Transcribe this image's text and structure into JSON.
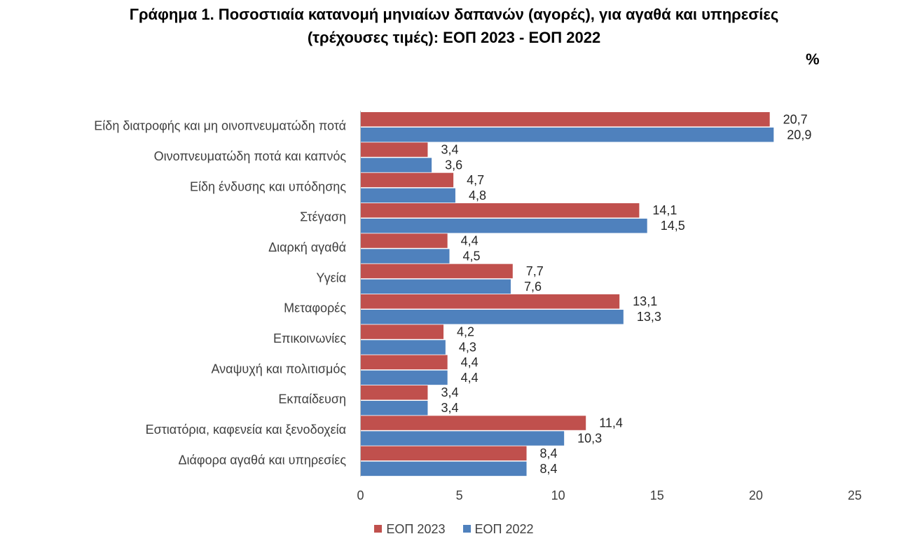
{
  "title_lines": [
    "Γράφημα 1. Ποσοστιαία κατανομή μηνιαίων δαπανών (αγορές), για αγαθά και υπηρεσίες",
    "(τρέχουσες τιμές): ΕΟΠ 2023 - ΕΟΠ 2022"
  ],
  "unit_label": "%",
  "chart_data": {
    "type": "bar",
    "orientation": "horizontal",
    "title": "Γράφημα 1. Ποσοστιαία κατανομή μηνιαίων δαπανών (αγορές), για αγαθά και υπηρεσίες (τρέχουσες τιμές): ΕΟΠ 2023 - ΕΟΠ 2022",
    "unit": "%",
    "categories": [
      "Είδη διατροφής και μη οινοπνευματώδη ποτά",
      "Οινοπνευματώδη ποτά και καπνός",
      "Είδη ένδυσης και υπόδησης",
      "Στέγαση",
      "Διαρκή αγαθά",
      "Υγεία",
      "Μεταφορές",
      "Επικοινωνίες",
      "Αναψυχή και πολιτισμός",
      "Εκπαίδευση",
      "Εστιατόρια, καφενεία  και ξενοδοχεία",
      "Διάφορα αγαθά και υπηρεσίες"
    ],
    "series": [
      {
        "name": "ΕΟΠ 2023",
        "color": "#C0504D",
        "values": [
          20.7,
          3.4,
          4.7,
          14.1,
          4.4,
          7.7,
          13.1,
          4.2,
          4.4,
          3.4,
          11.4,
          8.4
        ],
        "labels": [
          "20,7",
          "3,4",
          "4,7",
          "14,1",
          "4,4",
          "7,7",
          "13,1",
          "4,2",
          "4,4",
          "3,4",
          "11,4",
          "8,4"
        ]
      },
      {
        "name": "ΕΟΠ 2022",
        "color": "#4F81BD",
        "values": [
          20.9,
          3.6,
          4.8,
          14.5,
          4.5,
          7.6,
          13.3,
          4.3,
          4.4,
          3.4,
          10.3,
          8.4
        ],
        "labels": [
          "20,9",
          "3,6",
          "4,8",
          "14,5",
          "4,5",
          "7,6",
          "13,3",
          "4,3",
          "4,4",
          "3,4",
          "10,3",
          "8,4"
        ]
      }
    ],
    "xlim": [
      0,
      25
    ],
    "xticks": [
      0,
      5,
      10,
      15,
      20,
      25
    ],
    "xtick_labels": [
      "0",
      "5",
      "10",
      "15",
      "20",
      "25"
    ],
    "grid": false,
    "legend_position": "bottom-center"
  }
}
